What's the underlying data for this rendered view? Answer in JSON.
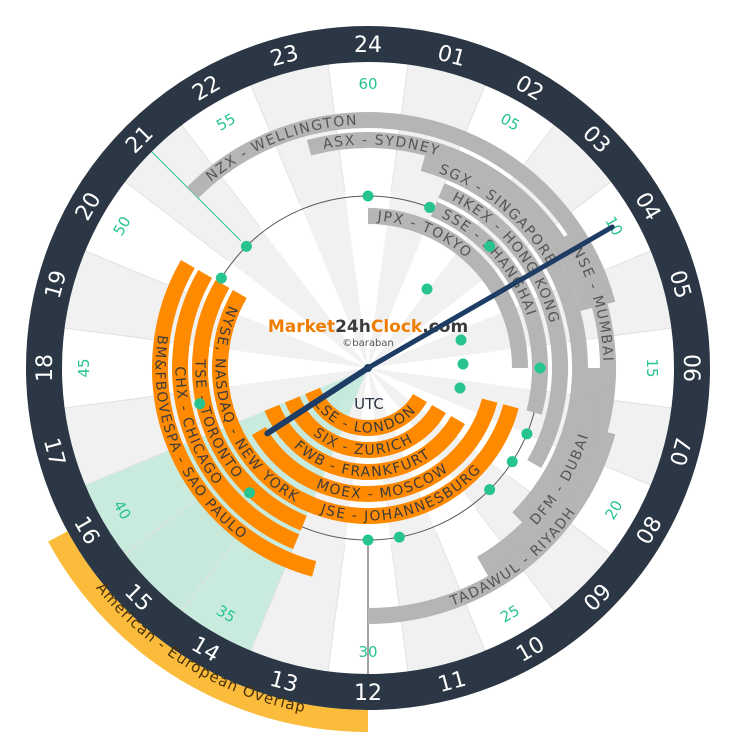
{
  "brand": {
    "part1": "Market",
    "part2": "24",
    "part3": "h",
    "part4": "Clock",
    "part5": ".com",
    "sub": "©baraban"
  },
  "utc_label": "UTC",
  "banner": "American - European Overlap",
  "hours": [
    "24",
    "01",
    "02",
    "03",
    "04",
    "05",
    "06",
    "07",
    "08",
    "09",
    "10",
    "11",
    "12",
    "13",
    "14",
    "15",
    "16",
    "17",
    "18",
    "19",
    "20",
    "21",
    "22",
    "23"
  ],
  "minute_labels": [
    {
      "m": 0,
      "t": "60"
    },
    {
      "m": 5,
      "t": "05"
    },
    {
      "m": 10,
      "t": "10"
    },
    {
      "m": 15,
      "t": "15"
    },
    {
      "m": 20,
      "t": "20"
    },
    {
      "m": 25,
      "t": "25"
    },
    {
      "m": 30,
      "t": "30"
    },
    {
      "m": 35,
      "t": "35"
    },
    {
      "m": 40,
      "t": "40"
    },
    {
      "m": 45,
      "t": "45"
    },
    {
      "m": 50,
      "t": "50"
    },
    {
      "m": 55,
      "t": "55"
    }
  ],
  "colors": {
    "ring": "#2b3744",
    "open_market": "#ff8a00",
    "closed_market": "#b5b5b5",
    "overlap": "#bfe8d8",
    "minutes": "#27c48f",
    "hands": "#1e3d64",
    "banner": "#fbbc3c",
    "brand_dark": "#3c3c3c",
    "brand_orange": "#ef7d00"
  },
  "markets": [
    {
      "name": "NZX - WELLINGTON",
      "open": 21,
      "close": 5,
      "state": "closed"
    },
    {
      "name": "ASX - SYDNEY",
      "open": 23,
      "close": 5,
      "state": "closed"
    },
    {
      "name": "NSE - MUMBAI",
      "open": 3.75,
      "close": 10,
      "state": "closed"
    },
    {
      "name": "SGX - SINGAPORE",
      "open": 1,
      "close": 9,
      "state": "closed"
    },
    {
      "name": "HKEX - HONG KONG",
      "open": 1.5,
      "close": 8,
      "state": "closed"
    },
    {
      "name": "SSE - SHANGHAI",
      "open": 1.5,
      "close": 7,
      "state": "closed"
    },
    {
      "name": "JPX - TOKYO",
      "open": 0,
      "close": 6,
      "state": "closed"
    },
    {
      "name": "TADAWUL - RIYADH",
      "open": 7,
      "close": 12,
      "state": "closed"
    },
    {
      "name": "DFM - DUBAI",
      "open": 6,
      "close": 10,
      "state": "closed"
    },
    {
      "name": "LSE - LONDON",
      "open": 8,
      "close": 16.5,
      "state": "open"
    },
    {
      "name": "SIX - ZURICH",
      "open": 8,
      "close": 16.5,
      "state": "open"
    },
    {
      "name": "FWB - FRANKFURT",
      "open": 8,
      "close": 16.5,
      "state": "open"
    },
    {
      "name": "MOEX - MOSCOW",
      "open": 7,
      "close": 16,
      "state": "open"
    },
    {
      "name": "JSE - JOHANNESBURG",
      "open": 7,
      "close": 15,
      "state": "open"
    },
    {
      "name": "NYSE, NASDAQ - NEW YORK",
      "open": 13.5,
      "close": 20,
      "state": "open"
    },
    {
      "name": "TSE - TORONTO",
      "open": 13.5,
      "close": 20,
      "state": "open"
    },
    {
      "name": "CHX - CHICAGO",
      "open": 13.5,
      "close": 20,
      "state": "open"
    },
    {
      "name": "BM&FBOVESPA - SAO PAULO",
      "open": 13,
      "close": 20,
      "state": "open"
    }
  ],
  "time": {
    "hour": 15.8,
    "minute": 10
  }
}
